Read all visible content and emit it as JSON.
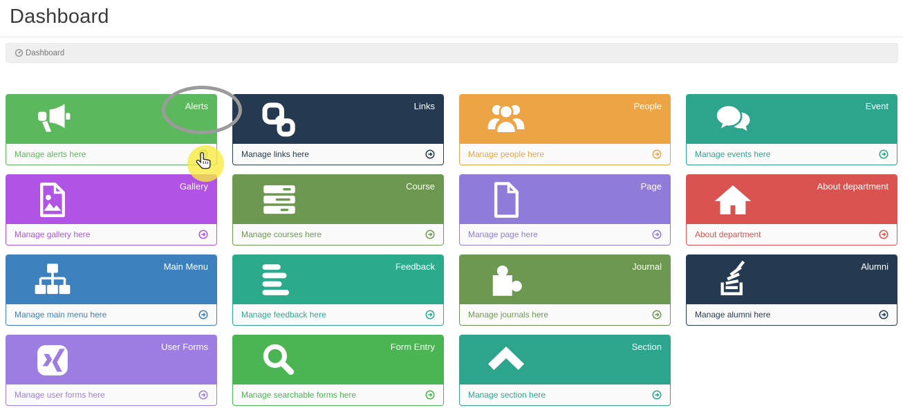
{
  "page": {
    "title": "Dashboard"
  },
  "breadcrumb": {
    "label": "Dashboard",
    "icon": "dashboard-gauge"
  },
  "tiles": [
    {
      "id": "alerts",
      "label": "Alerts",
      "footer": "Manage alerts here",
      "color": "#5cb85c",
      "icon": "bullhorn"
    },
    {
      "id": "links",
      "label": "Links",
      "footer": "Manage links here",
      "color": "#253a50",
      "icon": "chain"
    },
    {
      "id": "people",
      "label": "People",
      "footer": "Manage people here",
      "color": "#eda444",
      "icon": "users"
    },
    {
      "id": "event",
      "label": "Event",
      "footer": "Manage events here",
      "color": "#2ca58c",
      "icon": "comments"
    },
    {
      "id": "gallery",
      "label": "Gallery",
      "footer": "Manage gallery here",
      "color": "#b153e4",
      "icon": "image"
    },
    {
      "id": "course",
      "label": "Course",
      "footer": "Manage courses here",
      "color": "#6d9850",
      "icon": "server"
    },
    {
      "id": "page",
      "label": "Page",
      "footer": "Manage page here",
      "color": "#8e7cd8",
      "icon": "file"
    },
    {
      "id": "about-department",
      "label": "About department",
      "footer": "About department",
      "color": "#d95450",
      "icon": "home"
    },
    {
      "id": "main-menu",
      "label": "Main Menu",
      "footer": "Manage main menu here",
      "color": "#3c80be",
      "icon": "sitemap"
    },
    {
      "id": "feedback",
      "label": "Feedback",
      "footer": "Manage feedback here",
      "color": "#2bab8c",
      "icon": "align-left"
    },
    {
      "id": "journal",
      "label": "Journal",
      "footer": "Manage journals here",
      "color": "#6d9850",
      "icon": "puzzle"
    },
    {
      "id": "alumni",
      "label": "Alumni",
      "footer": "Manage alumni here",
      "color": "#253a50",
      "icon": "stack-overflow"
    },
    {
      "id": "user-forms",
      "label": "User Forms",
      "footer": "Manage user forms here",
      "color": "#9c7de2",
      "icon": "xing"
    },
    {
      "id": "form-entry",
      "label": "Form Entry",
      "footer": "Manage searchable forms here",
      "color": "#4cb553",
      "icon": "search"
    },
    {
      "id": "section",
      "label": "Section",
      "footer": "Manage section here",
      "color": "#2ca58c",
      "icon": "chevron-up"
    }
  ],
  "footer_icon": "arrow-circle-right",
  "annotations": {
    "ellipse_color": "#9b9b9b",
    "highlight_color": "#f8ea3e",
    "cursor": "hand-pointer"
  }
}
